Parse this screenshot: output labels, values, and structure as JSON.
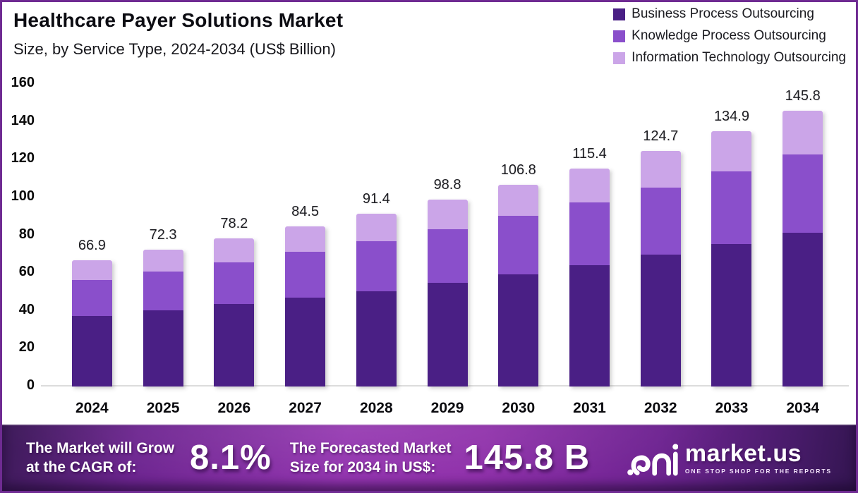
{
  "header": {
    "title": "Healthcare Payer Solutions Market",
    "subtitle": "Size, by Service Type, 2024-2034 (US$ Billion)"
  },
  "chart_data": {
    "type": "bar",
    "stacked": true,
    "title": "Healthcare Payer Solutions Market Size, by Service Type, 2024-2034 (US$ Billion)",
    "categories": [
      "2024",
      "2025",
      "2026",
      "2027",
      "2028",
      "2029",
      "2030",
      "2031",
      "2032",
      "2033",
      "2034"
    ],
    "series": [
      {
        "name": "Business Process Outsourcing",
        "color": "#4a1f85",
        "values": [
          37.3,
          40.3,
          43.8,
          46.9,
          50.4,
          54.7,
          59.3,
          64.1,
          69.7,
          75.3,
          81.5
        ]
      },
      {
        "name": "Knowledge Process Outsourcing",
        "color": "#8a4fcb",
        "values": [
          18.9,
          20.5,
          22.0,
          24.3,
          26.5,
          28.6,
          30.9,
          33.2,
          35.6,
          38.5,
          41.3
        ]
      },
      {
        "name": "Information Technology Outsourcing",
        "color": "#cba5e8",
        "values": [
          10.7,
          11.5,
          12.4,
          13.3,
          14.5,
          15.5,
          16.6,
          18.1,
          19.4,
          21.1,
          23.0
        ]
      }
    ],
    "totals": [
      "66.9",
      "72.3",
      "78.2",
      "84.5",
      "91.4",
      "98.8",
      "106.8",
      "115.4",
      "124.7",
      "134.9",
      "145.8"
    ],
    "xlabel": "",
    "ylabel": "",
    "ylim": [
      0,
      160
    ],
    "yticks": [
      0,
      20,
      40,
      60,
      80,
      100,
      120,
      140,
      160
    ],
    "grid": false,
    "legend_position": "top-right"
  },
  "banner": {
    "cagr_label_line1": "The Market will Grow",
    "cagr_label_line2": "at the CAGR of:",
    "cagr_value": "8.1%",
    "forecast_label_line1": "The Forecasted Market",
    "forecast_label_line2": "Size for 2034 in US$:",
    "forecast_value": "145.8 B",
    "brand": "market.us",
    "brand_tagline": "ONE STOP SHOP FOR THE REPORTS"
  }
}
